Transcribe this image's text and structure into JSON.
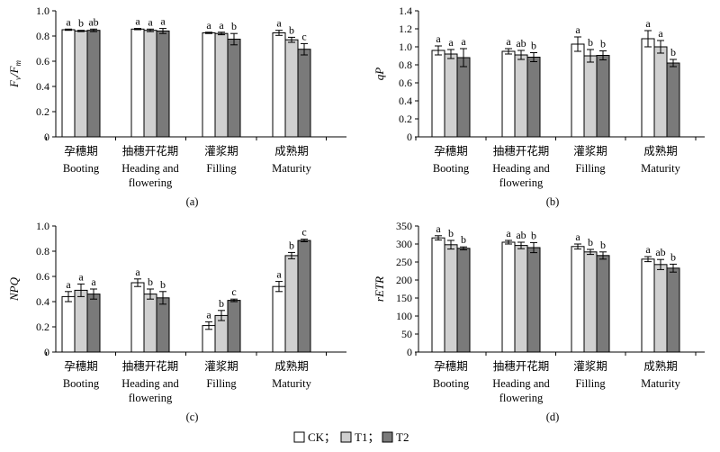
{
  "colors": {
    "CK": "#ffffff",
    "T1": "#d0d0d0",
    "T2": "#7a7a7a",
    "axis": "#000000"
  },
  "chart_data": [
    {
      "id": "a",
      "type": "bar",
      "caption": "(a)",
      "ylabel_main": "F",
      "ylabel_sub1": "v",
      "ylabel_slash": "/F",
      "ylabel_sub2": "m",
      "ylim": [
        0,
        1.0
      ],
      "yticks": [
        "0",
        "0.2",
        "0.4",
        "0.6",
        "0.8",
        "1.0"
      ],
      "categories": [
        {
          "zh": "孕穗期",
          "en": [
            "Booting"
          ]
        },
        {
          "zh": "抽穗开花期",
          "en": [
            "Heading and",
            "flowering"
          ]
        },
        {
          "zh": "灌浆期",
          "en": [
            "Filling"
          ]
        },
        {
          "zh": "成熟期",
          "en": [
            "Maturity"
          ]
        }
      ],
      "series": [
        {
          "name": "CK",
          "values": [
            0.85,
            0.855,
            0.825,
            0.825
          ],
          "errors": [
            0.005,
            0.005,
            0.005,
            0.02
          ]
        },
        {
          "name": "T1",
          "values": [
            0.84,
            0.845,
            0.82,
            0.77
          ],
          "errors": [
            0.005,
            0.01,
            0.01,
            0.02
          ]
        },
        {
          "name": "T2",
          "values": [
            0.845,
            0.84,
            0.775,
            0.695
          ],
          "errors": [
            0.01,
            0.02,
            0.045,
            0.045
          ]
        }
      ],
      "letters": [
        [
          "a",
          "b",
          "ab"
        ],
        [
          "a",
          "a",
          "a"
        ],
        [
          "a",
          "a",
          "b"
        ],
        [
          "a",
          "b",
          "c"
        ]
      ]
    },
    {
      "id": "b",
      "type": "bar",
      "caption": "(b)",
      "ylabel": "qP",
      "ylim": [
        0,
        1.4
      ],
      "yticks": [
        "0",
        "0.2",
        "0.4",
        "0.6",
        "0.8",
        "1.0",
        "1.2",
        "1.4"
      ],
      "categories": [
        {
          "zh": "孕穗期",
          "en": [
            "Booting"
          ]
        },
        {
          "zh": "抽穗开花期",
          "en": [
            "Heading and",
            "flowering"
          ]
        },
        {
          "zh": "灌浆期",
          "en": [
            "Filling"
          ]
        },
        {
          "zh": "成熟期",
          "en": [
            "Maturity"
          ]
        }
      ],
      "series": [
        {
          "name": "CK",
          "values": [
            0.96,
            0.95,
            1.03,
            1.09
          ],
          "errors": [
            0.05,
            0.03,
            0.08,
            0.09
          ]
        },
        {
          "name": "T1",
          "values": [
            0.92,
            0.91,
            0.9,
            1.0
          ],
          "errors": [
            0.05,
            0.05,
            0.07,
            0.07
          ]
        },
        {
          "name": "T2",
          "values": [
            0.88,
            0.885,
            0.905,
            0.82
          ],
          "errors": [
            0.1,
            0.05,
            0.05,
            0.04
          ]
        }
      ],
      "letters": [
        [
          "a",
          "a",
          "a"
        ],
        [
          "a",
          "ab",
          "b"
        ],
        [
          "a",
          "b",
          "b"
        ],
        [
          "a",
          "a",
          "b"
        ]
      ]
    },
    {
      "id": "c",
      "type": "bar",
      "caption": "(c)",
      "ylabel": "NPQ",
      "ylim": [
        0,
        1.0
      ],
      "yticks": [
        "0",
        "0.2",
        "0.4",
        "0.6",
        "0.8",
        "1.0"
      ],
      "categories": [
        {
          "zh": "孕穗期",
          "en": [
            "Booting"
          ]
        },
        {
          "zh": "抽穗开花期",
          "en": [
            "Heading and",
            "flowering"
          ]
        },
        {
          "zh": "灌浆期",
          "en": [
            "Filling"
          ]
        },
        {
          "zh": "成熟期",
          "en": [
            "Maturity"
          ]
        }
      ],
      "series": [
        {
          "name": "CK",
          "values": [
            0.44,
            0.55,
            0.21,
            0.52
          ],
          "errors": [
            0.04,
            0.03,
            0.03,
            0.04
          ]
        },
        {
          "name": "T1",
          "values": [
            0.49,
            0.46,
            0.29,
            0.765
          ],
          "errors": [
            0.05,
            0.04,
            0.04,
            0.025
          ]
        },
        {
          "name": "T2",
          "values": [
            0.46,
            0.43,
            0.41,
            0.885
          ],
          "errors": [
            0.04,
            0.05,
            0.01,
            0.01
          ]
        }
      ],
      "letters": [
        [
          "a",
          "a",
          "a"
        ],
        [
          "a",
          "b",
          "b"
        ],
        [
          "a",
          "b",
          "c"
        ],
        [
          "a",
          "b",
          "c"
        ]
      ]
    },
    {
      "id": "d",
      "type": "bar",
      "caption": "(d)",
      "ylabel": "rETR",
      "ylim": [
        0,
        350
      ],
      "yticks": [
        "0",
        "50",
        "100",
        "150",
        "200",
        "250",
        "300",
        "350"
      ],
      "categories": [
        {
          "zh": "孕穗期",
          "en": [
            "Booting"
          ]
        },
        {
          "zh": "抽穗开花期",
          "en": [
            "Heading and",
            "flowering"
          ]
        },
        {
          "zh": "灌浆期",
          "en": [
            "Filling"
          ]
        },
        {
          "zh": "成熟期",
          "en": [
            "Maturity"
          ]
        }
      ],
      "series": [
        {
          "name": "CK",
          "values": [
            317,
            305,
            293,
            258
          ],
          "errors": [
            6,
            5,
            7,
            7
          ]
        },
        {
          "name": "T1",
          "values": [
            298,
            296,
            278,
            243
          ],
          "errors": [
            12,
            9,
            7,
            14
          ]
        },
        {
          "name": "T2",
          "values": [
            288,
            290,
            268,
            233
          ],
          "errors": [
            4,
            14,
            10,
            11
          ]
        }
      ],
      "letters": [
        [
          "a",
          "b",
          "b"
        ],
        [
          "a",
          "ab",
          "b"
        ],
        [
          "a",
          "b",
          "b"
        ],
        [
          "a",
          "ab",
          "b"
        ]
      ]
    }
  ],
  "legend": {
    "items": [
      "CK；",
      "T1；",
      "T2"
    ]
  }
}
